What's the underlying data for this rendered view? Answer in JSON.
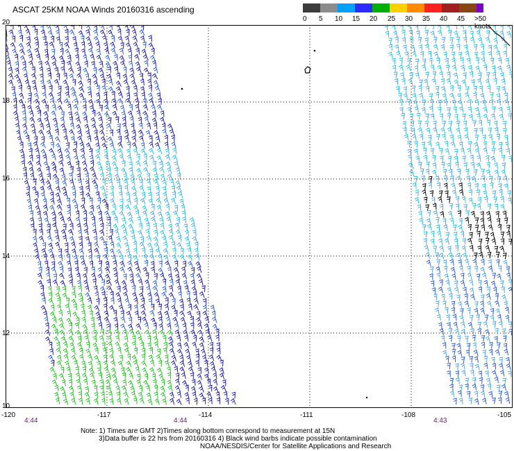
{
  "title": "ASCAT 25KM NOAA Winds 20160316 ascending",
  "legend": {
    "labels": [
      "0",
      "5",
      "10",
      "15",
      "20",
      "25",
      "30",
      "35",
      "40",
      "45",
      ">50 knots"
    ],
    "colors": [
      "#3c3c3c",
      "#8c8c8c",
      "#00a0ff",
      "#3a3aff",
      "#00b000",
      "#ffd000",
      "#ff8c00",
      "#ff2020",
      "#a02020",
      "#8b4513",
      "#7a00c8"
    ]
  },
  "lat_labels": [
    "20",
    "18",
    "16",
    "14",
    "12",
    "10"
  ],
  "lon_labels": [
    "-120",
    "-117",
    "-114",
    "-111",
    "-108",
    "-105"
  ],
  "time_labels": [
    "4:44",
    "4:44",
    "4:43"
  ],
  "notes": {
    "line1": "Note: 1) Times are GMT 2)Times along bottom correspond to measurement at 15N",
    "line2": "3)Data buffer is 22 hrs from 20160316 4) Black wind barbs indicate possible contamination",
    "line3": "NOAA/NESDIS/Center for Satellite Applications and Research"
  },
  "colors": {
    "blue_dark": "#1a1aa8",
    "blue_mid": "#2a5cd8",
    "cyan": "#22c4e8",
    "light_blue": "#4aa8e8",
    "green": "#22c422",
    "black": "#000000",
    "time_label": "#6a1a6a"
  }
}
